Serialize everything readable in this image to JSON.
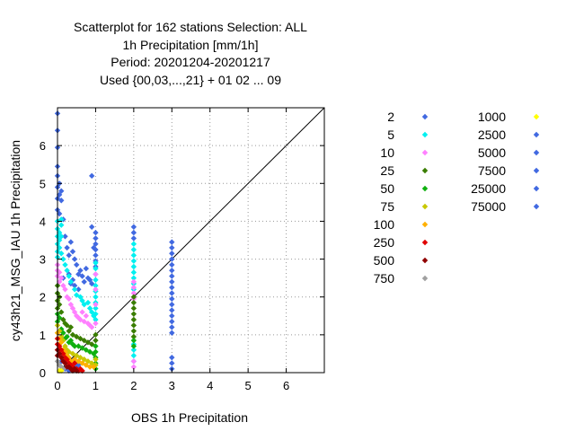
{
  "chart_data": {
    "type": "scatter",
    "title_lines": [
      "Scatterplot for  162 stations Selection: ALL",
      "1h Precipitation [mm/1h]",
      "Period: 20201204-20201217",
      "Used {00,03,...,21} + 01 02 ... 09"
    ],
    "xlabel": "OBS 1h Precipitation",
    "ylabel": "cy43h21_MSG_IAU 1h Precipitation",
    "xlim": [
      0,
      7
    ],
    "ylim": [
      0,
      7
    ],
    "xticks": [
      0,
      1,
      2,
      3,
      4,
      5,
      6
    ],
    "yticks": [
      0,
      1,
      2,
      3,
      4,
      5,
      6
    ],
    "grid": true,
    "diagonal": true,
    "legend_position": "right",
    "legend_columns": [
      [
        {
          "label": "2",
          "color": "#4169e1"
        },
        {
          "label": "5",
          "color": "#00f0f0"
        },
        {
          "label": "10",
          "color": "#ff80ff"
        },
        {
          "label": "25",
          "color": "#3a7d00"
        },
        {
          "label": "50",
          "color": "#10b010"
        },
        {
          "label": "75",
          "color": "#c8c800"
        },
        {
          "label": "100",
          "color": "#ffb000"
        },
        {
          "label": "250",
          "color": "#e00000"
        },
        {
          "label": "500",
          "color": "#900000"
        },
        {
          "label": "750",
          "color": "#a0a0a0"
        }
      ],
      [
        {
          "label": "1000",
          "color": "#ffff00"
        },
        {
          "label": "2500",
          "color": "#4169e1"
        },
        {
          "label": "5000",
          "color": "#4169e1"
        },
        {
          "label": "7500",
          "color": "#4169e1"
        },
        {
          "label": "25000",
          "color": "#4169e1"
        },
        {
          "label": "75000",
          "color": "#4169e1"
        }
      ]
    ],
    "series": [
      {
        "name": "2",
        "color": "#4169e1",
        "points": [
          [
            0,
            6.85
          ],
          [
            0,
            6.4
          ],
          [
            0,
            5.95
          ],
          [
            0,
            5.45
          ],
          [
            0,
            5.2
          ],
          [
            0,
            4.9
          ],
          [
            0,
            4.6
          ],
          [
            0,
            4.3
          ],
          [
            0.05,
            5.0
          ],
          [
            0.05,
            4.7
          ],
          [
            0.05,
            4.2
          ],
          [
            0.1,
            4.8
          ],
          [
            0.1,
            4.55
          ],
          [
            0.15,
            4.05
          ],
          [
            0.2,
            3.6
          ],
          [
            0.25,
            3.3
          ],
          [
            0.3,
            3.1
          ],
          [
            0.35,
            3.45
          ],
          [
            0.4,
            3.2
          ],
          [
            0.45,
            3.0
          ],
          [
            0.5,
            2.85
          ],
          [
            0.55,
            2.6
          ],
          [
            0.6,
            2.7
          ],
          [
            0.65,
            2.55
          ],
          [
            0.7,
            2.4
          ],
          [
            0.75,
            2.75
          ],
          [
            0.8,
            2.5
          ],
          [
            0.85,
            2.45
          ],
          [
            0.9,
            2.35
          ],
          [
            0.95,
            3.3
          ],
          [
            0.15,
            2.5
          ],
          [
            0.3,
            2.6
          ],
          [
            0.4,
            2.45
          ],
          [
            0.45,
            2.3
          ],
          [
            0.55,
            2.2
          ],
          [
            0.35,
            2.35
          ],
          [
            0.9,
            5.2
          ],
          [
            0.9,
            3.85
          ],
          [
            1,
            3.7
          ],
          [
            1,
            3.55
          ],
          [
            1,
            3.4
          ],
          [
            1,
            3.25
          ],
          [
            1,
            3.1
          ],
          [
            1,
            2.95
          ],
          [
            1,
            2.8
          ],
          [
            2,
            3.85
          ],
          [
            2,
            3.7
          ],
          [
            2,
            3.55
          ],
          [
            3,
            3.45
          ],
          [
            3,
            3.3
          ],
          [
            3,
            3.15
          ],
          [
            3,
            3.0
          ],
          [
            3,
            2.85
          ],
          [
            3,
            2.7
          ],
          [
            3,
            2.55
          ],
          [
            3,
            2.4
          ],
          [
            3,
            2.25
          ],
          [
            3,
            2.1
          ],
          [
            3,
            1.95
          ],
          [
            3,
            1.8
          ],
          [
            3,
            1.65
          ],
          [
            3,
            1.5
          ],
          [
            3,
            1.35
          ],
          [
            3,
            1.2
          ],
          [
            3,
            1.05
          ],
          [
            3,
            0.4
          ],
          [
            3,
            0.25
          ],
          [
            3,
            0.1
          ],
          [
            0.1,
            0.3
          ],
          [
            0.2,
            0.1
          ],
          [
            0.3,
            0.05
          ],
          [
            0.5,
            0.15
          ],
          [
            0.55,
            0.2
          ]
        ]
      },
      {
        "name": "5",
        "color": "#00f0f0",
        "points": [
          [
            0,
            4.0
          ],
          [
            0,
            3.8
          ],
          [
            0,
            3.6
          ],
          [
            0,
            3.4
          ],
          [
            0,
            3.2
          ],
          [
            0,
            3.05
          ],
          [
            0.05,
            3.7
          ],
          [
            0.05,
            3.5
          ],
          [
            0.05,
            3.3
          ],
          [
            0.1,
            4.05
          ],
          [
            0.1,
            3.9
          ],
          [
            0.1,
            3.6
          ],
          [
            0.1,
            3.15
          ],
          [
            0.15,
            3.0
          ],
          [
            0.2,
            2.85
          ],
          [
            0.25,
            2.7
          ],
          [
            0.3,
            2.55
          ],
          [
            0.35,
            2.4
          ],
          [
            0.45,
            2.2
          ],
          [
            0.5,
            2.05
          ],
          [
            0.6,
            2.0
          ],
          [
            0.65,
            1.9
          ],
          [
            0.7,
            1.8
          ],
          [
            0.8,
            1.85
          ],
          [
            0.85,
            1.7
          ],
          [
            0.9,
            1.6
          ],
          [
            0.95,
            1.5
          ],
          [
            1,
            2.9
          ],
          [
            1,
            2.75
          ],
          [
            1,
            2.6
          ],
          [
            1,
            2.45
          ],
          [
            1,
            2.3
          ],
          [
            1,
            2.15
          ],
          [
            1,
            2.0
          ],
          [
            1,
            1.85
          ],
          [
            1,
            1.7
          ],
          [
            1,
            1.55
          ],
          [
            1,
            1.4
          ],
          [
            2,
            3.4
          ],
          [
            2,
            3.25
          ],
          [
            2,
            3.1
          ],
          [
            2,
            2.95
          ],
          [
            2,
            2.8
          ],
          [
            2,
            2.65
          ],
          [
            2,
            2.5
          ],
          [
            2,
            2.35
          ],
          [
            2,
            2.2
          ],
          [
            2,
            0.75
          ],
          [
            2,
            0.6
          ],
          [
            2,
            0.45
          ],
          [
            2,
            0.3
          ]
        ]
      },
      {
        "name": "10",
        "color": "#ff80ff",
        "points": [
          [
            0,
            2.85
          ],
          [
            0,
            2.7
          ],
          [
            0,
            2.55
          ],
          [
            0.05,
            2.65
          ],
          [
            0.05,
            2.4
          ],
          [
            0.1,
            2.5
          ],
          [
            0.15,
            2.3
          ],
          [
            0.2,
            2.2
          ],
          [
            0.25,
            2.0
          ],
          [
            0.3,
            1.95
          ],
          [
            0.35,
            1.8
          ],
          [
            0.4,
            1.7
          ],
          [
            0.45,
            1.6
          ],
          [
            0.5,
            1.5
          ],
          [
            0.55,
            1.45
          ],
          [
            0.6,
            1.4
          ],
          [
            0.65,
            1.6
          ],
          [
            0.7,
            1.35
          ],
          [
            0.75,
            1.5
          ],
          [
            0.8,
            1.3
          ],
          [
            0.85,
            1.25
          ],
          [
            0.9,
            1.2
          ],
          [
            1,
            2.6
          ],
          [
            1,
            2.2
          ],
          [
            1,
            1.8
          ],
          [
            1,
            1.3
          ],
          [
            2,
            2.4
          ],
          [
            2,
            2.25
          ],
          [
            2,
            2.1
          ],
          [
            2,
            1.95
          ],
          [
            2,
            0.3
          ],
          [
            2,
            0.15
          ]
        ]
      },
      {
        "name": "25",
        "color": "#3a7d00",
        "points": [
          [
            0,
            2.3
          ],
          [
            0,
            2.1
          ],
          [
            0,
            1.9
          ],
          [
            0,
            1.7
          ],
          [
            0.05,
            2.0
          ],
          [
            0.05,
            1.8
          ],
          [
            0.1,
            1.6
          ],
          [
            0.15,
            1.4
          ],
          [
            0.2,
            1.3
          ],
          [
            0.25,
            1.25
          ],
          [
            0.3,
            1.1
          ],
          [
            0.35,
            1.2
          ],
          [
            0.4,
            1.0
          ],
          [
            0.5,
            0.95
          ],
          [
            0.6,
            0.9
          ],
          [
            0.7,
            0.85
          ],
          [
            0.8,
            0.8
          ],
          [
            0.9,
            0.75
          ],
          [
            1,
            1.0
          ],
          [
            1,
            0.85
          ],
          [
            2,
            2.0
          ],
          [
            2,
            1.85
          ],
          [
            2,
            1.7
          ],
          [
            2,
            1.55
          ],
          [
            2,
            1.4
          ],
          [
            2,
            1.25
          ],
          [
            2,
            1.1
          ],
          [
            2,
            0.95
          ]
        ]
      },
      {
        "name": "50",
        "color": "#10b010",
        "points": [
          [
            0,
            1.55
          ],
          [
            0,
            1.35
          ],
          [
            0.05,
            1.45
          ],
          [
            0.1,
            1.15
          ],
          [
            0.15,
            1.05
          ],
          [
            0.2,
            0.9
          ],
          [
            0.25,
            0.95
          ],
          [
            0.3,
            0.8
          ],
          [
            0.35,
            0.85
          ],
          [
            0.4,
            0.75
          ],
          [
            0.45,
            0.7
          ],
          [
            0.55,
            0.7
          ],
          [
            0.65,
            0.65
          ],
          [
            0.75,
            0.6
          ],
          [
            0.85,
            0.55
          ],
          [
            0.95,
            0.5
          ],
          [
            1,
            0.7
          ],
          [
            1,
            0.55
          ],
          [
            1,
            0.4
          ],
          [
            1,
            0.25
          ],
          [
            1,
            0.1
          ],
          [
            2,
            0.85
          ],
          [
            2,
            0.7
          ]
        ]
      },
      {
        "name": "75",
        "color": "#c8c800",
        "points": [
          [
            0,
            1.25
          ],
          [
            0.05,
            1.1
          ],
          [
            0.1,
            0.95
          ],
          [
            0.15,
            0.85
          ],
          [
            0.2,
            0.7
          ],
          [
            0.25,
            0.6
          ],
          [
            0.3,
            0.55
          ],
          [
            0.4,
            0.5
          ],
          [
            0.5,
            0.45
          ],
          [
            0.6,
            0.4
          ],
          [
            0.7,
            0.35
          ],
          [
            0.8,
            0.3
          ],
          [
            0.9,
            0.25
          ],
          [
            1,
            0.35
          ],
          [
            1,
            0.2
          ]
        ]
      },
      {
        "name": "100",
        "color": "#ffb000",
        "points": [
          [
            0,
            1.05
          ],
          [
            0.05,
            0.9
          ],
          [
            0.1,
            0.8
          ],
          [
            0.15,
            0.6
          ],
          [
            0.2,
            0.55
          ],
          [
            0.25,
            0.45
          ],
          [
            0.3,
            0.4
          ],
          [
            0.35,
            0.3
          ],
          [
            0.45,
            0.35
          ],
          [
            0.55,
            0.3
          ],
          [
            0.65,
            0.25
          ],
          [
            0.75,
            0.2
          ],
          [
            0.85,
            0.15
          ],
          [
            0.95,
            0.15
          ]
        ]
      },
      {
        "name": "250",
        "color": "#e00000",
        "points": [
          [
            0,
            0.9
          ],
          [
            0,
            0.75
          ],
          [
            0.05,
            0.7
          ],
          [
            0.1,
            0.6
          ],
          [
            0.15,
            0.5
          ],
          [
            0.2,
            0.4
          ],
          [
            0.25,
            0.35
          ],
          [
            0.3,
            0.25
          ],
          [
            0.35,
            0.2
          ],
          [
            0.4,
            0.15
          ],
          [
            0.45,
            0.25
          ],
          [
            0.5,
            0.1
          ],
          [
            0.55,
            0.05
          ],
          [
            0.6,
            0.1
          ],
          [
            0.65,
            0.05
          ]
        ]
      },
      {
        "name": "500",
        "color": "#900000",
        "points": [
          [
            0,
            0.6
          ],
          [
            0,
            0.45
          ],
          [
            0.05,
            0.5
          ],
          [
            0.1,
            0.4
          ],
          [
            0.15,
            0.3
          ],
          [
            0.2,
            0.25
          ],
          [
            0.25,
            0.15
          ],
          [
            0.3,
            0.15
          ],
          [
            0.35,
            0.1
          ],
          [
            0.4,
            0.05
          ],
          [
            0.5,
            0.05
          ],
          [
            0.45,
            0.1
          ]
        ]
      },
      {
        "name": "750",
        "color": "#a0a0a0",
        "points": [
          [
            0,
            0.3
          ],
          [
            0.05,
            0.2
          ],
          [
            0.1,
            0.15
          ],
          [
            0.15,
            0.1
          ]
        ]
      },
      {
        "name": "1000",
        "color": "#ffff00",
        "points": [
          [
            0.05,
            0.05
          ],
          [
            0.1,
            0.05
          ]
        ]
      }
    ]
  }
}
